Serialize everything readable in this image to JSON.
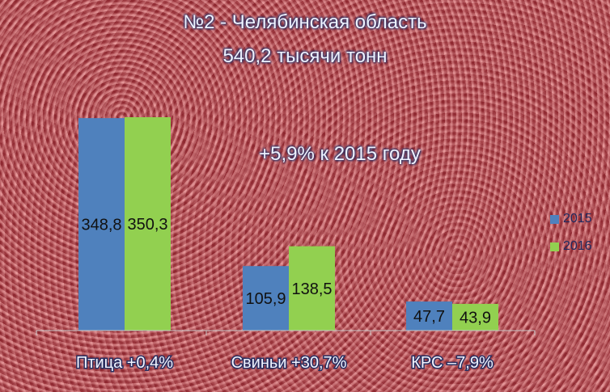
{
  "chart_data": {
    "type": "bar",
    "title": "№2 - Челябинская область",
    "subtitle": "540,2 тысячи тонн",
    "annotation": "+5,9% к 2015 году",
    "categories": [
      "Птица  +0,4%",
      "Свиньи +30,7%",
      "КРС –7,9%"
    ],
    "series": [
      {
        "name": "2015",
        "values": [
          348.8,
          105.9,
          47.7
        ],
        "labels": [
          "348,8",
          "105,9",
          "47,7"
        ],
        "color": "#4f81bd"
      },
      {
        "name": "2016",
        "values": [
          350.3,
          138.5,
          43.9
        ],
        "labels": [
          "350,3",
          "138,5",
          "43,9"
        ],
        "color": "#92d050"
      }
    ],
    "ylim": [
      0,
      350.3
    ],
    "grid": false,
    "legend_position": "right"
  }
}
